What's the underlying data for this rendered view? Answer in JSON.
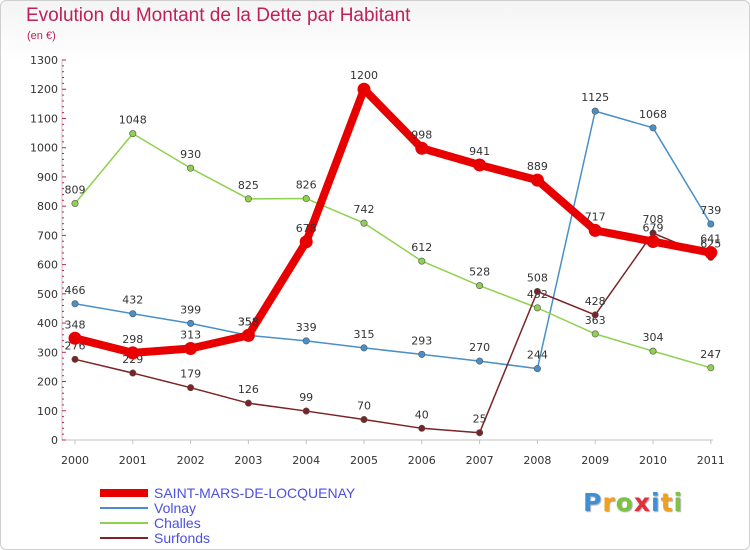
{
  "title": "Evolution du Montant de la Dette par Habitant",
  "subtitle": "(en €)",
  "logo": {
    "text": "Proxiti",
    "letters": [
      {
        "ch": "P",
        "color": "#3d8fd8"
      },
      {
        "ch": "r",
        "color": "#f0a020"
      },
      {
        "ch": "o",
        "color": "#7cc243"
      },
      {
        "ch": "x",
        "color": "#e0303a"
      },
      {
        "ch": "i",
        "color": "#3d8fd8"
      },
      {
        "ch": "t",
        "color": "#f0a020"
      },
      {
        "ch": "i",
        "color": "#7cc243"
      }
    ]
  },
  "chart_data": {
    "type": "line",
    "x": [
      "2000",
      "2001",
      "2002",
      "2003",
      "2004",
      "2005",
      "2006",
      "2007",
      "2008",
      "2009",
      "2010",
      "2011"
    ],
    "ylim": [
      0,
      1300
    ],
    "yticks": [
      0,
      100,
      200,
      300,
      400,
      500,
      600,
      700,
      800,
      900,
      1000,
      1100,
      1200,
      1300
    ],
    "grid": false,
    "legend_position": "bottom-left",
    "series": [
      {
        "name": "Volnay",
        "color": "#4a90c8",
        "values": [
          466,
          432,
          399,
          358,
          339,
          315,
          293,
          270,
          244,
          1125,
          1068,
          739
        ],
        "labels": [
          "466",
          "432",
          "399",
          "358",
          "339",
          "315",
          "293",
          "270",
          "244",
          "1125",
          "1068",
          "739"
        ]
      },
      {
        "name": "Challes",
        "color": "#8fd14f",
        "values": [
          809,
          1048,
          930,
          825,
          826,
          742,
          612,
          528,
          452,
          363,
          304,
          247
        ],
        "labels": [
          "809",
          "1048",
          "930",
          "825",
          "826",
          "742",
          "612",
          "528",
          "452",
          "363",
          "304",
          "247"
        ]
      },
      {
        "name": "Surfonds",
        "color": "#7b2326",
        "values": [
          276,
          229,
          179,
          126,
          99,
          70,
          40,
          25,
          508,
          428,
          708,
          625
        ],
        "labels": [
          "276",
          "229",
          "179",
          "126",
          "99",
          "70",
          "40",
          "25",
          "508",
          "428",
          "708",
          "625"
        ]
      },
      {
        "name": "SAINT-MARS-DE-LOCQUENAY",
        "color": "#e80000",
        "values": [
          348,
          298,
          313,
          358,
          678,
          1200,
          998,
          941,
          889,
          717,
          679,
          641
        ],
        "labels": [
          "348",
          "298",
          "313",
          "358",
          "678",
          "1200",
          "998",
          "941",
          "889",
          "717",
          "679",
          "641"
        ]
      }
    ],
    "legend_order": [
      "SAINT-MARS-DE-LOCQUENAY",
      "Volnay",
      "Challes",
      "Surfonds"
    ]
  }
}
